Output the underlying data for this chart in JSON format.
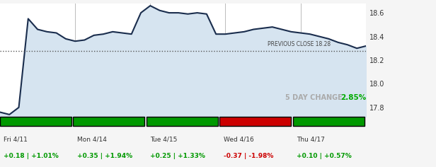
{
  "title": "",
  "prev_close": 18.28,
  "five_day_change": "2.85%",
  "yticks": [
    17.8,
    18.0,
    18.2,
    18.4,
    18.6
  ],
  "ymin": 17.72,
  "ymax": 18.68,
  "days": [
    {
      "label": "Fri 4/11",
      "change": "+0.18",
      "pct": "+1.01%",
      "color": "#009900",
      "bar_color": "#009900"
    },
    {
      "label": "Mon 4/14",
      "change": "+0.35",
      "pct": "+1.94%",
      "color": "#009900",
      "bar_color": "#009900"
    },
    {
      "label": "Tue 4/15",
      "change": "+0.25",
      "pct": "+1.33%",
      "color": "#009900",
      "bar_color": "#009900"
    },
    {
      "label": "Wed 4/16",
      "change": "-0.37",
      "pct": "-1.98%",
      "color": "#cc0000",
      "bar_color": "#cc0000"
    },
    {
      "label": "Thu 4/17",
      "change": "+0.10",
      "pct": "+0.57%",
      "color": "#009900",
      "bar_color": "#009900"
    }
  ],
  "line_color": "#1a2d4d",
  "fill_color": "#d6e4f0",
  "grid_color": "#cccccc",
  "bg_color": "#f5f5f5",
  "chart_bg": "#ffffff",
  "prev_close_line_color": "#555555",
  "x_values": [
    0,
    1,
    2,
    3,
    4,
    5,
    6,
    7,
    8,
    9,
    10,
    11,
    12,
    13,
    14,
    15,
    16,
    17,
    18,
    19,
    20,
    21,
    22,
    23,
    24,
    25,
    26,
    27,
    28,
    29,
    30,
    31,
    32,
    33,
    34,
    35,
    36,
    37,
    38,
    39
  ],
  "y_values": [
    17.76,
    17.74,
    17.8,
    18.55,
    18.46,
    18.44,
    18.43,
    18.38,
    18.36,
    18.37,
    18.41,
    18.42,
    18.44,
    18.43,
    18.42,
    18.6,
    18.66,
    18.62,
    18.6,
    18.6,
    18.59,
    18.6,
    18.59,
    18.42,
    18.42,
    18.43,
    18.44,
    18.46,
    18.47,
    18.48,
    18.46,
    18.44,
    18.43,
    18.42,
    18.4,
    18.38,
    18.35,
    18.33,
    18.3,
    18.32
  ]
}
